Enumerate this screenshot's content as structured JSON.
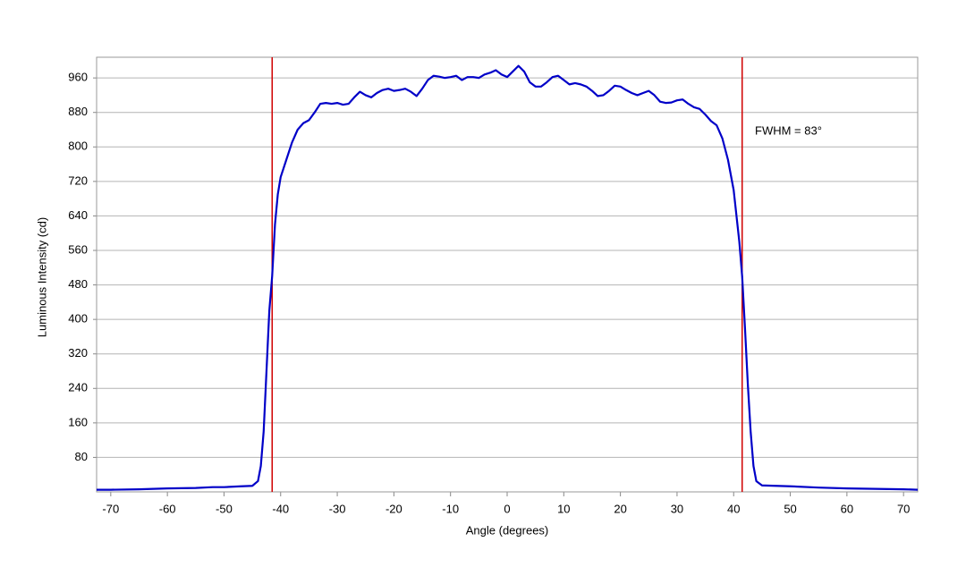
{
  "chart_data": {
    "type": "line",
    "xlabel": "Angle (degrees)",
    "ylabel": "Luminous Intensity (cd)",
    "annotation": "FWHM = 83°",
    "x": [
      -72.5,
      -70,
      -65,
      -60,
      -55,
      -52,
      -50,
      -47,
      -45,
      -44,
      -43.5,
      -43,
      -42.5,
      -42,
      -41.5,
      -41,
      -40.5,
      -40,
      -39,
      -38,
      -37,
      -36,
      -35,
      -34,
      -33,
      -32,
      -31,
      -30,
      -29,
      -28,
      -27,
      -26,
      -25,
      -24,
      -23,
      -22,
      -21,
      -20,
      -19,
      -18,
      -17,
      -16,
      -15,
      -14,
      -13,
      -12,
      -11,
      -10,
      -9,
      -8,
      -7,
      -6,
      -5,
      -4,
      -3,
      -2,
      -1,
      0,
      1,
      2,
      3,
      4,
      5,
      6,
      7,
      8,
      9,
      10,
      11,
      12,
      13,
      14,
      15,
      16,
      17,
      18,
      19,
      20,
      21,
      22,
      23,
      24,
      25,
      26,
      27,
      28,
      29,
      30,
      31,
      32,
      33,
      34,
      35,
      36,
      37,
      38,
      39,
      40,
      41,
      41.5,
      42,
      42.5,
      43,
      43.5,
      44,
      45,
      50,
      55,
      60,
      65,
      70,
      72.5
    ],
    "values": [
      5,
      5,
      6,
      8,
      9,
      11,
      11,
      13,
      14,
      25,
      60,
      140,
      280,
      420,
      500,
      620,
      690,
      730,
      770,
      810,
      840,
      855,
      862,
      880,
      900,
      902,
      900,
      902,
      898,
      900,
      915,
      928,
      920,
      915,
      925,
      932,
      935,
      930,
      932,
      935,
      928,
      918,
      935,
      955,
      965,
      963,
      960,
      962,
      965,
      955,
      962,
      962,
      960,
      968,
      972,
      978,
      968,
      962,
      975,
      988,
      975,
      950,
      940,
      940,
      950,
      962,
      965,
      955,
      945,
      948,
      945,
      940,
      930,
      918,
      920,
      930,
      942,
      940,
      932,
      925,
      920,
      925,
      930,
      920,
      905,
      902,
      903,
      908,
      910,
      900,
      892,
      888,
      875,
      860,
      850,
      820,
      770,
      700,
      580,
      500,
      380,
      250,
      140,
      60,
      25,
      15,
      13,
      10,
      8,
      7,
      6,
      5
    ],
    "color": "#0000c8",
    "vlines": [
      -41.5,
      41.5
    ],
    "vline_color": "#d00000",
    "xlim": [
      -72.5,
      72.5
    ],
    "ylim": [
      0,
      1008
    ],
    "xticks": [
      -70,
      -60,
      -50,
      -40,
      -30,
      -20,
      -10,
      0,
      10,
      20,
      30,
      40,
      50,
      60,
      70
    ],
    "yticks": [
      80,
      160,
      240,
      320,
      400,
      480,
      560,
      640,
      720,
      800,
      880,
      960
    ],
    "grid": true
  }
}
